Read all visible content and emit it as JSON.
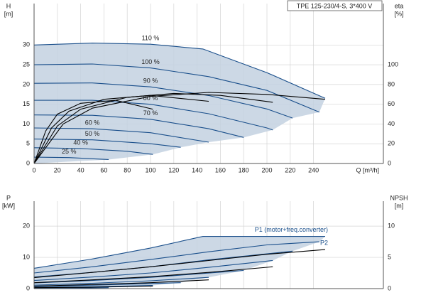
{
  "chart_data": [
    {
      "type": "line",
      "title": "TPE 125-230/4-S, 3*400 V",
      "y_label": "H",
      "y_unit": "[m]",
      "y2_label": "eta",
      "y2_unit": "[%]",
      "x_label": "Q [m³/h]",
      "xlim": [
        0,
        300
      ],
      "xticks": [
        0,
        20,
        40,
        60,
        80,
        100,
        120,
        140,
        160,
        180,
        200,
        220,
        240
      ],
      "ylim": [
        0,
        40.5
      ],
      "yticks": [
        0,
        5,
        10,
        15,
        20,
        25,
        30
      ],
      "y2lim": [
        0,
        162
      ],
      "y2ticks": [
        0,
        20,
        40,
        60,
        80,
        100
      ],
      "grid": true,
      "fill_color": "#c3d1e1",
      "series": [
        {
          "name": "110 %",
          "color": "#1a4f8b",
          "x": [
            0,
            50,
            100,
            145,
            200,
            250
          ],
          "values": [
            30,
            30.5,
            30.2,
            29,
            23,
            16.5
          ]
        },
        {
          "name": "100 %",
          "color": "#1a4f8b",
          "x": [
            0,
            50,
            100,
            150,
            200,
            245
          ],
          "values": [
            25,
            25.2,
            24.2,
            22,
            18.5,
            13
          ]
        },
        {
          "name": "90 %",
          "color": "#1a4f8b",
          "x": [
            0,
            50,
            100,
            150,
            200,
            222
          ],
          "values": [
            20.3,
            20.4,
            19.4,
            17.2,
            13.8,
            11.5
          ]
        },
        {
          "name": "80 %",
          "color": "#1a4f8b",
          "x": [
            0,
            50,
            100,
            150,
            200,
            205
          ],
          "values": [
            16,
            16,
            15,
            12.6,
            9,
            8.5
          ]
        },
        {
          "name": "70 %",
          "color": "#1a4f8b",
          "x": [
            0,
            50,
            100,
            150,
            180
          ],
          "values": [
            12.3,
            12.2,
            11.2,
            8.8,
            6.6
          ]
        },
        {
          "name": "60 %",
          "color": "#1a4f8b",
          "x": [
            0,
            50,
            100,
            150
          ],
          "values": [
            9,
            8.8,
            7.8,
            5.4
          ]
        },
        {
          "name": "50 %",
          "color": "#1a4f8b",
          "x": [
            0,
            50,
            100,
            126
          ],
          "values": [
            6.2,
            6,
            5,
            4.1
          ]
        },
        {
          "name": "40 %",
          "color": "#1a4f8b",
          "x": [
            0,
            40,
            80,
            102
          ],
          "values": [
            4,
            3.8,
            3.1,
            2.3
          ]
        },
        {
          "name": "25 %",
          "color": "#1a4f8b",
          "x": [
            0,
            30,
            64
          ],
          "values": [
            1.6,
            1.5,
            1
          ]
        },
        {
          "axis": "y2",
          "color": "#000000",
          "x": [
            0,
            25,
            50,
            100,
            150,
            200,
            250
          ],
          "values": [
            0,
            40,
            56,
            68,
            72,
            70,
            65
          ]
        },
        {
          "axis": "y2",
          "color": "#000000",
          "x": [
            0,
            20,
            40,
            80,
            120,
            160,
            205
          ],
          "values": [
            0,
            38,
            55,
            67,
            71,
            69,
            62
          ]
        },
        {
          "axis": "y2",
          "color": "#000000",
          "x": [
            0,
            15,
            30,
            60,
            100,
            150
          ],
          "values": [
            0,
            36,
            53,
            65,
            69,
            63
          ]
        },
        {
          "axis": "y2",
          "color": "#000000",
          "x": [
            0,
            10,
            20,
            40,
            70,
            102
          ],
          "values": [
            0,
            33,
            50,
            61,
            64,
            55
          ]
        }
      ]
    },
    {
      "type": "line",
      "y_label": "P",
      "y_unit": "[kW]",
      "y2_label": "NPSH",
      "y2_unit": "[m]",
      "xlim": [
        0,
        300
      ],
      "ylim": [
        0,
        28
      ],
      "yticks": [
        0,
        10,
        20
      ],
      "y2lim": [
        0,
        14
      ],
      "y2ticks": [
        0,
        5,
        10
      ],
      "grid": true,
      "fill_color": "#c3d1e1",
      "series": [
        {
          "label": "P1 (motor+freq.converter)",
          "color": "#1a4f8b",
          "x": [
            0,
            50,
            100,
            145,
            250
          ],
          "values": [
            6.5,
            9.5,
            13,
            16.7,
            16.7
          ]
        },
        {
          "color": "#1a4f8b",
          "x": [
            0,
            50,
            100,
            150,
            200,
            245
          ],
          "values": [
            5,
            7,
            9.3,
            11.8,
            14,
            15
          ]
        },
        {
          "color": "#1a4f8b",
          "x": [
            0,
            50,
            100,
            150,
            222
          ],
          "values": [
            3.7,
            5.2,
            7,
            9.2,
            12
          ]
        },
        {
          "color": "#1a4f8b",
          "x": [
            0,
            50,
            100,
            150,
            205
          ],
          "values": [
            2.6,
            3.7,
            5,
            6.8,
            9
          ]
        },
        {
          "color": "#1a4f8b",
          "x": [
            0,
            50,
            100,
            180
          ],
          "values": [
            1.8,
            2.6,
            3.6,
            5.8
          ]
        },
        {
          "color": "#1a4f8b",
          "x": [
            0,
            50,
            100,
            150
          ],
          "values": [
            1.1,
            1.7,
            2.5,
            3.6
          ]
        },
        {
          "color": "#1a4f8b",
          "x": [
            0,
            50,
            126
          ],
          "values": [
            0.7,
            1.1,
            1.9
          ]
        },
        {
          "color": "#1a4f8b",
          "x": [
            0,
            50,
            102
          ],
          "values": [
            0.4,
            0.6,
            1
          ]
        },
        {
          "color": "#1a4f8b",
          "x": [
            0,
            64
          ],
          "values": [
            0.1,
            0.3
          ]
        },
        {
          "label": "P2",
          "color": "#000000",
          "x": [
            0,
            50,
            100,
            150,
            200,
            250
          ],
          "values": [
            3.5,
            5.2,
            7,
            9,
            11,
            12.5
          ]
        },
        {
          "color": "#000000",
          "x": [
            0,
            50,
            100,
            150,
            205
          ],
          "values": [
            1.9,
            2.8,
            3.8,
            5.2,
            7
          ]
        },
        {
          "color": "#000000",
          "x": [
            0,
            50,
            100,
            150
          ],
          "values": [
            0.8,
            1.3,
            1.9,
            2.8
          ]
        },
        {
          "color": "#000000",
          "x": [
            0,
            50,
            102
          ],
          "values": [
            0.3,
            0.45,
            0.8
          ]
        }
      ]
    }
  ]
}
